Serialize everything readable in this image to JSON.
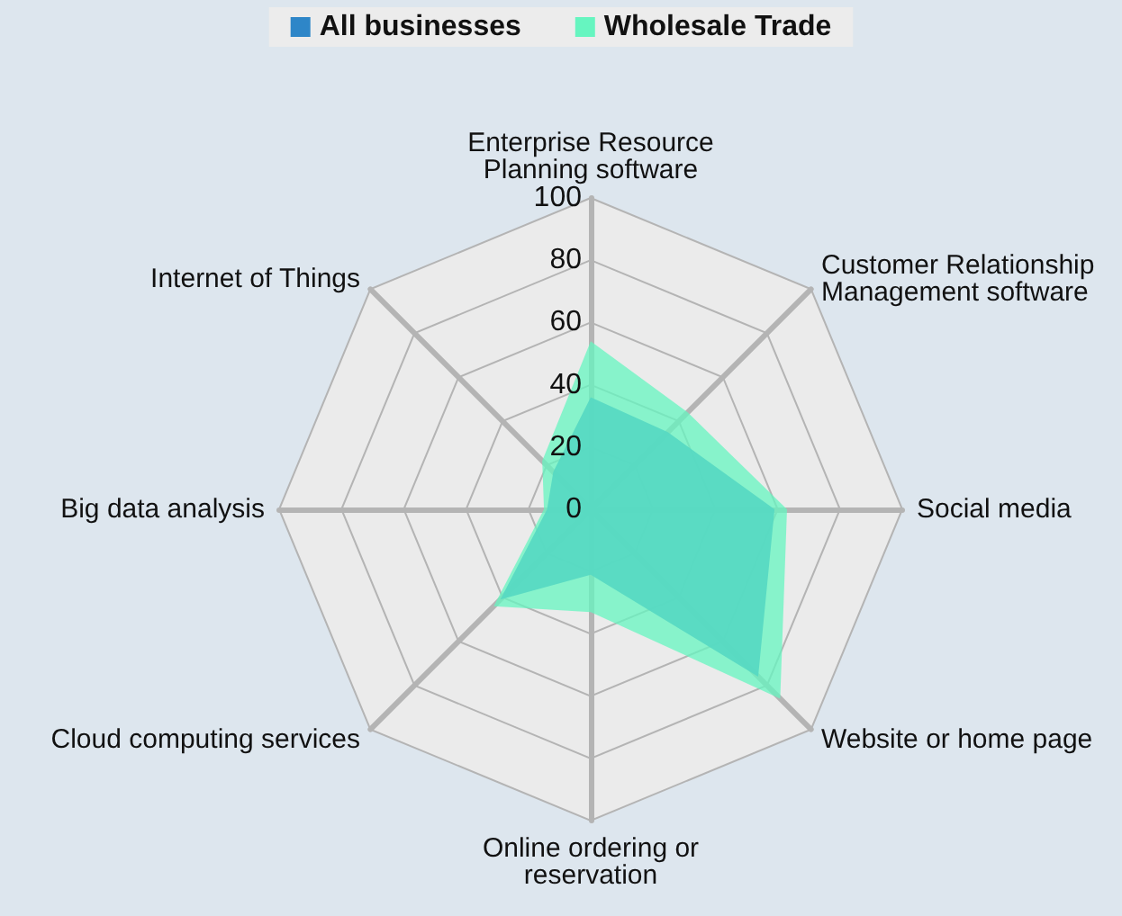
{
  "chart_data": {
    "type": "radar",
    "categories": [
      "Enterprise Resource\nPlanning software",
      "Customer Relationship\nManagement software",
      "Social media",
      "Website or home page",
      "Online ordering or\nreservation",
      "Cloud computing services",
      "Big data analysis",
      "Internet of Things"
    ],
    "series": [
      {
        "name": "All businesses",
        "color": "#2e86c8",
        "values": [
          36,
          35,
          59,
          76,
          21,
          41,
          14,
          17
        ]
      },
      {
        "name": "Wholesale Trade",
        "color": "#66f5c0",
        "values": [
          54,
          44,
          63,
          86,
          33,
          44,
          15,
          22
        ]
      }
    ],
    "ylim": [
      0,
      100
    ],
    "yticks": [
      0,
      20,
      40,
      60,
      80,
      100
    ],
    "legend": "top"
  }
}
